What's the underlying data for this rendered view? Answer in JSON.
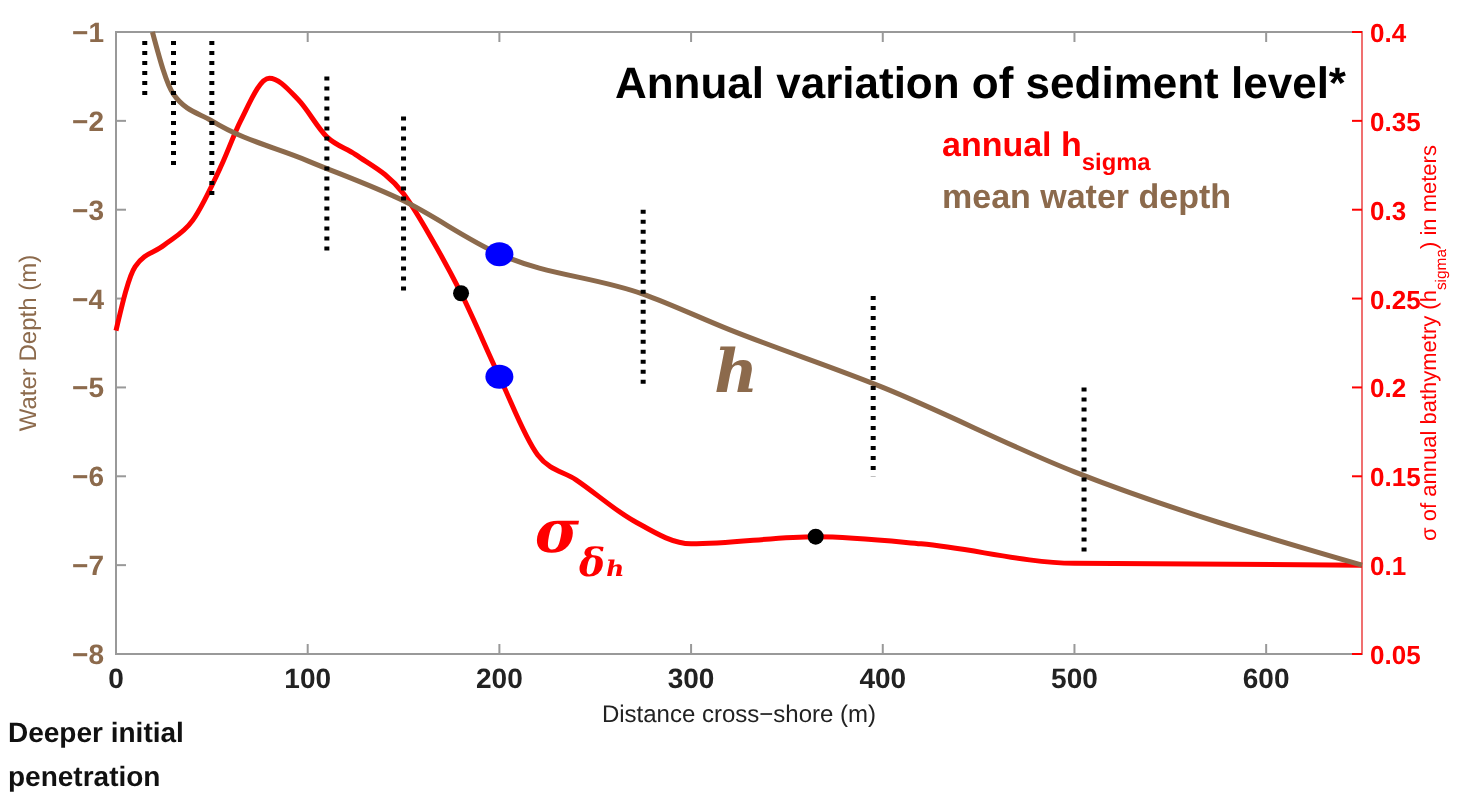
{
  "chart_data": {
    "type": "line",
    "title": "Annual variation of sediment level*",
    "xlabel": "Distance cross−shore (m)",
    "ylabel": "Water Depth (m)",
    "y2label": "σ of annual bathymetry (h$_{sigma}$) in meters",
    "xlim": [
      0,
      650
    ],
    "xticks": [
      0,
      100,
      200,
      300,
      400,
      500,
      600
    ],
    "ylim": [
      -8,
      -1
    ],
    "yticks": [
      -8,
      -7,
      -6,
      -5,
      -4,
      -3,
      -2,
      -1
    ],
    "y2lim": [
      0.05,
      0.4
    ],
    "y2ticks": [
      0.05,
      0.1,
      0.15,
      0.2,
      0.25,
      0.3,
      0.35,
      0.4
    ],
    "grid": false,
    "legend": "top right",
    "marker": "none",
    "series": [
      {
        "name": "annual h$_{sigma}$",
        "color": "#ff0000",
        "axis": "y2",
        "x": [
          0,
          10,
          25,
          40,
          55,
          65,
          80,
          95,
          110,
          125,
          150,
          165,
          180,
          200,
          220,
          240,
          270,
          300,
          365,
          420,
          500,
          650
        ],
        "values": [
          0.232,
          0.268,
          0.28,
          0.294,
          0.325,
          0.35,
          0.374,
          0.362,
          0.341,
          0.331,
          0.309,
          0.283,
          0.253,
          0.206,
          0.162,
          0.148,
          0.125,
          0.112,
          0.116,
          0.112,
          0.101,
          0.1
        ]
      },
      {
        "name": "mean water depth",
        "color": "#8c6a4c",
        "x": [
          19,
          30,
          50,
          100,
          150,
          200,
          275,
          320,
          400,
          500,
          650
        ],
        "values": [
          -1.0,
          -1.7,
          -2.0,
          -2.45,
          -2.9,
          -3.5,
          -3.95,
          -4.35,
          -5.0,
          -5.95,
          -7.0
        ]
      },
      {
        "type": "line",
        "color": "#000000",
        "line_style": "dotted",
        "x": [
          15,
          15
        ],
        "values": [
          -1.1,
          -1.77
        ]
      },
      {
        "type": "line",
        "color": "#000000",
        "line_style": "dotted",
        "x": [
          30,
          30
        ],
        "values": [
          -1.1,
          -2.5
        ]
      },
      {
        "type": "line",
        "color": "#000000",
        "line_style": "dotted",
        "x": [
          50,
          50
        ],
        "values": [
          -1.1,
          -2.9
        ]
      },
      {
        "type": "line",
        "color": "#000000",
        "line_style": "dotted",
        "x": [
          110,
          110
        ],
        "values": [
          -1.5,
          -3.5
        ]
      },
      {
        "type": "line",
        "color": "#000000",
        "line_style": "dotted",
        "x": [
          150,
          150
        ],
        "values": [
          -1.95,
          -3.97
        ]
      },
      {
        "type": "line",
        "color": "#000000",
        "line_style": "dotted",
        "x": [
          275,
          275
        ],
        "values": [
          -3.0,
          -5.0
        ]
      },
      {
        "type": "line",
        "color": "#000000",
        "line_style": "dotted",
        "x": [
          395,
          395
        ],
        "values": [
          -3.97,
          -6.0
        ]
      },
      {
        "type": "line",
        "color": "#000000",
        "line_style": "dotted",
        "x": [
          505,
          505
        ],
        "values": [
          -5.0,
          -6.9
        ]
      },
      {
        "type": "scatter",
        "color": "#0000ff",
        "marker": "circle",
        "x": [
          200
        ],
        "values": [
          -3.5
        ]
      },
      {
        "type": "scatter",
        "color": "#0000ff",
        "marker": "circle",
        "axis": "y2",
        "x": [
          200
        ],
        "values": [
          0.206
        ]
      },
      {
        "type": "scatter",
        "color": "#000000",
        "marker": "circle",
        "axis": "y2",
        "x": [
          180,
          365
        ],
        "values": [
          0.253,
          0.116
        ]
      }
    ],
    "annotations": [
      "h",
      "σ$_{δₕ}$",
      "Deeper initial penetration"
    ]
  }
}
